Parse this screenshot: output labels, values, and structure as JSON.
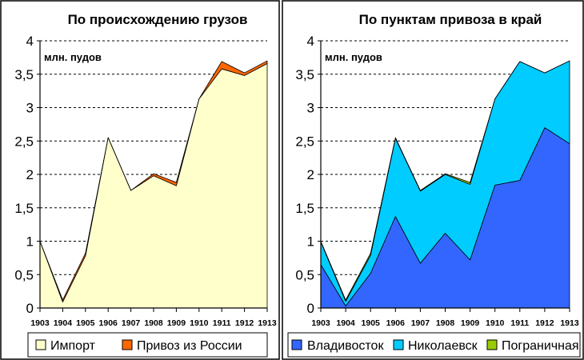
{
  "chart_data": [
    {
      "type": "area",
      "title": "По происхождению грузов",
      "unit_label": "млн. пудов",
      "stacked": true,
      "x": [
        "1903",
        "1904",
        "1905",
        "1906",
        "1907",
        "1908",
        "1909",
        "1910",
        "1911",
        "1912",
        "1913"
      ],
      "ylim": [
        0,
        4
      ],
      "yticks": [
        "0",
        "0,5",
        "1",
        "1,5",
        "2",
        "2,5",
        "3",
        "3,5",
        "4"
      ],
      "grid": true,
      "legend": "bottom",
      "series": [
        {
          "name": "Импорт",
          "color": "#FFFFCC",
          "values": [
            1.0,
            0.09,
            0.78,
            2.55,
            1.76,
            1.98,
            1.83,
            3.13,
            3.58,
            3.48,
            3.66
          ]
        },
        {
          "name": "Привоз из России",
          "color": "#FF6600",
          "values": [
            0.0,
            0.03,
            0.04,
            0.0,
            0.0,
            0.03,
            0.05,
            0.0,
            0.11,
            0.04,
            0.04
          ]
        }
      ]
    },
    {
      "type": "area",
      "title": "По пунктам привоза в край",
      "unit_label": "млн. пудов",
      "stacked": true,
      "x": [
        "1903",
        "1904",
        "1905",
        "1906",
        "1907",
        "1908",
        "1909",
        "1910",
        "1911",
        "1912",
        "1913"
      ],
      "ylim": [
        0,
        4
      ],
      "yticks": [
        "0",
        "0,5",
        "1",
        "1,5",
        "2",
        "2,5",
        "3",
        "3,5",
        "4"
      ],
      "grid": true,
      "legend": "bottom",
      "series": [
        {
          "name": "Владивосток",
          "color": "#3366FF",
          "values": [
            0.65,
            0.03,
            0.52,
            1.37,
            0.67,
            1.12,
            0.72,
            1.84,
            1.91,
            2.7,
            2.46
          ]
        },
        {
          "name": "Николаевск",
          "color": "#00CCFF",
          "values": [
            0.34,
            0.07,
            0.27,
            1.17,
            1.08,
            0.88,
            1.13,
            1.29,
            1.78,
            0.82,
            1.24
          ]
        },
        {
          "name": "Пограничная",
          "color": "#99CC00",
          "values": [
            0.01,
            0.02,
            0.03,
            0.01,
            0.01,
            0.01,
            0.03,
            0.0,
            0.0,
            0.0,
            0.0
          ]
        }
      ]
    }
  ]
}
